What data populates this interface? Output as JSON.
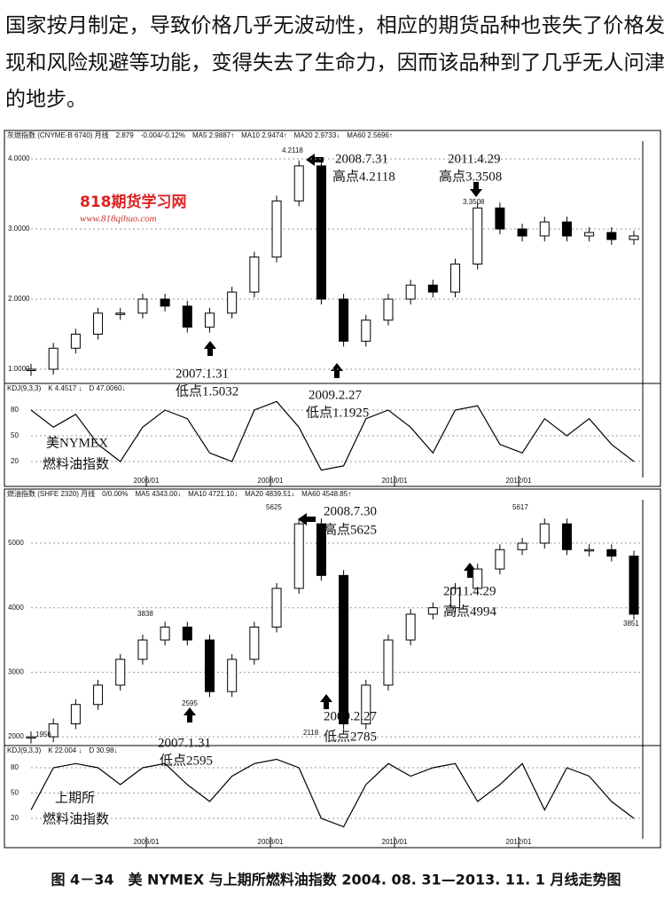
{
  "paragraph": [
    "国家按月制定，导致价格几乎无波动性，相应的期货品种也丧失了价格发",
    "现和风险规避等功能，变得失去了生命力，因而该品种到了几乎无人问津",
    "的地步。"
  ],
  "watermark": {
    "name": "818期货学习网",
    "url": "www.818qihuo.com"
  },
  "figure": {
    "caption": "图 4－34　美 NYMEX 与上期所燃料油指数 2004. 08. 31—2013. 11. 1 月线走势图",
    "panels": [
      {
        "header": "灰燃指数 (CNYME-B 6740) 月线　2.879　-0.004/-0.12%　MA5 2.9887↑　MA10 2.9474↑　MA20 2.9733↓　MA60 2.5696↑",
        "price_ticks": [
          {
            "value": 1,
            "label": "1.0000"
          },
          {
            "value": 2,
            "label": "2.0000"
          },
          {
            "value": 3,
            "label": "3.0000"
          },
          {
            "value": 4,
            "label": "4.0000"
          }
        ],
        "kdj_header": "KDJ(9,3,3)　K 4.4517 ↓　D 47.0060↓",
        "kdj_ticks": [
          20,
          50,
          80
        ],
        "dates": [
          "2006/01",
          "2008/01",
          "2010/01",
          "2012/01"
        ],
        "annotations": [
          "4.2118",
          "2008.7.31",
          "高点4.2118",
          "2011.4.29",
          "高点3.3508",
          "3.3508",
          "2007.1.31",
          "低点1.5032",
          "2009.2.27",
          "低点1.1925"
        ],
        "label": [
          "美NYMEX",
          "燃料油指数"
        ],
        "close": [
          1.0,
          1.3,
          1.5,
          1.8,
          1.8,
          2.0,
          1.9,
          1.6,
          1.8,
          2.1,
          2.6,
          3.4,
          3.9,
          2.0,
          1.4,
          1.7,
          2.0,
          2.2,
          2.1,
          2.5,
          3.3,
          3.0,
          2.9,
          3.1,
          2.9,
          2.95,
          2.85,
          2.9
        ],
        "kdj_k": [
          80,
          60,
          75,
          40,
          20,
          60,
          80,
          70,
          30,
          20,
          80,
          90,
          60,
          10,
          15,
          70,
          80,
          60,
          30,
          80,
          85,
          40,
          30,
          70,
          50,
          70,
          40,
          20
        ]
      },
      {
        "header": "燃油指数 (SHFE 2320) 月线　0/0.00%　MA5 4343.00↓　MA10 4721.10↓　MA20 4839.51↓　MA60 4548.85↑",
        "price_ticks": [
          2000,
          3000,
          4000,
          5000
        ],
        "kdj_header": "KDJ(9,3,3)　K 22.004 ↓　D 30.98↓",
        "kdj_ticks": [
          20,
          50,
          80
        ],
        "dates": [
          "2006/01",
          "2008/01",
          "2010/01",
          "2012/01"
        ],
        "annotations": [
          "5625",
          "2008.7.30",
          "高点5625",
          "5617",
          "3838",
          "2595",
          "2007.1.31",
          "低点2595",
          "2118",
          "2009.2.27",
          "低点2785",
          "2011.4.29",
          "高点4994",
          "3851",
          "1956"
        ],
        "label": [
          "上期所",
          "燃料油指数"
        ],
        "close": [
          2000,
          2200,
          2500,
          2800,
          3200,
          3500,
          3700,
          3500,
          2700,
          3200,
          3700,
          4300,
          5300,
          4500,
          2200,
          2800,
          3500,
          3900,
          4000,
          4300,
          4600,
          4900,
          5000,
          5300,
          4900,
          4900,
          4800,
          3900
        ],
        "kdj_k": [
          30,
          80,
          85,
          80,
          60,
          80,
          85,
          60,
          40,
          70,
          85,
          90,
          80,
          20,
          10,
          60,
          85,
          70,
          80,
          85,
          40,
          60,
          85,
          30,
          80,
          70,
          40,
          20
        ]
      }
    ]
  }
}
